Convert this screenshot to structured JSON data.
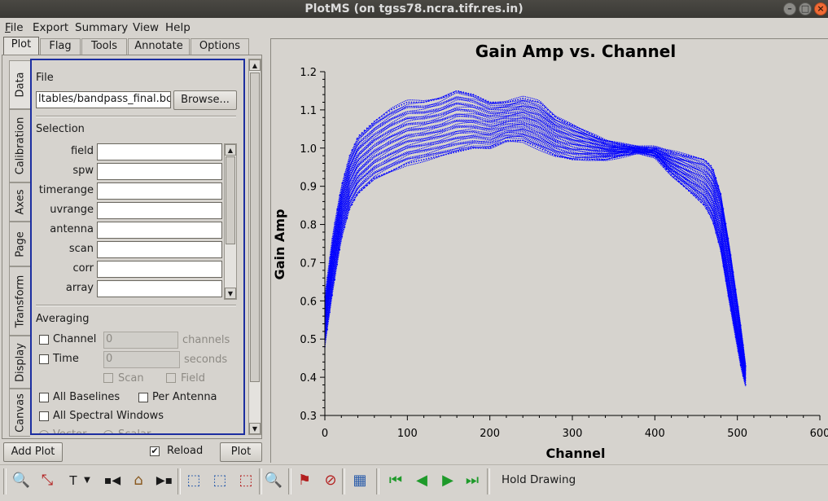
{
  "window": {
    "title": "PlotMS (on tgss78.ncra.tifr.res.in)"
  },
  "menu": [
    "File",
    "Export",
    "Summary",
    "View",
    "Help"
  ],
  "tabs": [
    "Plot",
    "Flag",
    "Tools",
    "Annotate",
    "Options"
  ],
  "vertical_tabs": [
    "Data",
    "Calibration",
    "Axes",
    "Page",
    "Transform",
    "Display",
    "Canvas"
  ],
  "data_tab": {
    "file_section": "File",
    "file_value": "ltables/bandpass_final.bcal",
    "browse_label": "Browse...",
    "selection_section": "Selection",
    "selection_fields": [
      "field",
      "spw",
      "timerange",
      "uvrange",
      "antenna",
      "scan",
      "corr",
      "array"
    ],
    "averaging_section": "Averaging",
    "channel_label": "Channel",
    "channel_value": "0",
    "channel_unit": "channels",
    "time_label": "Time",
    "time_value": "0",
    "time_unit": "seconds",
    "scan_label": "Scan",
    "field_label": "Field",
    "all_baselines_label": "All Baselines",
    "per_antenna_label": "Per Antenna",
    "all_spw_label": "All Spectral Windows",
    "vector_label": "Vector",
    "scalar_label": "Scalar"
  },
  "bottom_buttons": {
    "add_plot": "Add Plot",
    "reload": "Reload",
    "plot": "Plot",
    "reload_checked": true
  },
  "toolbar": {
    "hold_drawing": "Hold Drawing"
  },
  "colors": {
    "points": "#0000ff",
    "focus": "#1c2ea0"
  },
  "chart_data": {
    "type": "scatter",
    "title": "Gain Amp vs. Channel",
    "xlabel": "Channel",
    "ylabel": "Gain Amp",
    "xlim": [
      0,
      600
    ],
    "ylim": [
      0.3,
      1.2
    ],
    "xticks": [
      0,
      100,
      200,
      300,
      400,
      500,
      600
    ],
    "yticks": [
      0.3,
      0.4,
      0.5,
      0.6,
      0.7,
      0.8,
      0.9,
      1.0,
      1.1,
      1.2
    ],
    "series": [
      {
        "points_style": "dense band of many antenna bandpass curves",
        "x": [
          0,
          10,
          20,
          30,
          40,
          50,
          60,
          80,
          100,
          120,
          140,
          160,
          180,
          200,
          220,
          240,
          260,
          280,
          300,
          320,
          340,
          360,
          380,
          400,
          420,
          440,
          460,
          470,
          480,
          490,
          500,
          505,
          510
        ],
        "upper": [
          0.61,
          0.78,
          0.9,
          0.98,
          1.03,
          1.05,
          1.07,
          1.1,
          1.12,
          1.12,
          1.13,
          1.15,
          1.14,
          1.12,
          1.12,
          1.13,
          1.12,
          1.08,
          1.06,
          1.04,
          1.02,
          1.01,
          1.0,
          1.0,
          0.99,
          0.98,
          0.97,
          0.95,
          0.88,
          0.75,
          0.6,
          0.52,
          0.43
        ],
        "lower": [
          0.48,
          0.63,
          0.76,
          0.84,
          0.88,
          0.9,
          0.92,
          0.94,
          0.96,
          0.97,
          0.98,
          0.99,
          1.0,
          1.0,
          1.02,
          1.02,
          1.0,
          0.98,
          0.97,
          0.97,
          0.97,
          0.98,
          0.99,
          0.98,
          0.93,
          0.89,
          0.85,
          0.81,
          0.73,
          0.6,
          0.48,
          0.42,
          0.38
        ]
      }
    ]
  }
}
